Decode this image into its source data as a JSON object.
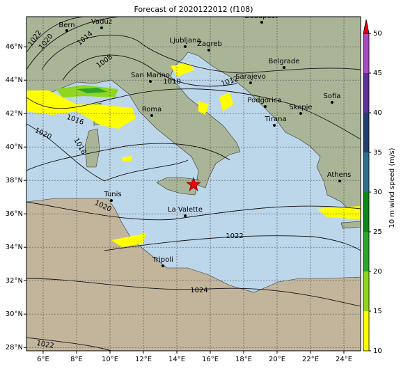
{
  "title": "Forecast of 2020122012 (f108)",
  "map": {
    "lonticks": [
      {
        "value": 6,
        "label": "6°E"
      },
      {
        "value": 8,
        "label": "8°E"
      },
      {
        "value": 10,
        "label": "10°E"
      },
      {
        "value": 12,
        "label": "12°E"
      },
      {
        "value": 14,
        "label": "14°E"
      },
      {
        "value": 16,
        "label": "16°E"
      },
      {
        "value": 18,
        "label": "18°E"
      },
      {
        "value": 20,
        "label": "20°E"
      },
      {
        "value": 22,
        "label": "22°E"
      },
      {
        "value": 24,
        "label": "24°E"
      }
    ],
    "latticks": [
      {
        "value": 28,
        "label": "28°N"
      },
      {
        "value": 30,
        "label": "30°N"
      },
      {
        "value": 32,
        "label": "32°N"
      },
      {
        "value": 34,
        "label": "34°N"
      },
      {
        "value": 36,
        "label": "36°N"
      },
      {
        "value": 38,
        "label": "38°N"
      },
      {
        "value": 40,
        "label": "40°N"
      },
      {
        "value": 42,
        "label": "42°N"
      },
      {
        "value": 44,
        "label": "44°N"
      },
      {
        "value": 46,
        "label": "46°N"
      }
    ],
    "cities": [
      "Bern",
      "Vaduz",
      "Budapest",
      "Ljubljana",
      "Zagreb",
      "Belgrade",
      "San Marino",
      "Sarajevo",
      "Sofia",
      "Podgorica",
      "Skopje",
      "Roma",
      "Tirana",
      "Athens",
      "Tunis",
      "La Valette",
      "Tripoli"
    ],
    "isobar_labels": [
      "1022",
      "1020",
      "1014",
      "1008",
      "1010",
      "1012",
      "1016",
      "1020",
      "1018",
      "1020",
      "1022",
      "1024",
      "1022"
    ]
  },
  "colorbar": {
    "label": "10 m wind speed (m/s)",
    "lim": [
      10,
      50
    ],
    "ticks": [
      10,
      15,
      20,
      25,
      30,
      35,
      40,
      45,
      50
    ],
    "colors": [
      "#ffff00",
      "#8fd61f",
      "#2ca52c",
      "#11861a",
      "#2f6f8e",
      "#223f72",
      "#5e2f96",
      "#a54bbd"
    ],
    "extend_color": "#e8000b"
  }
}
